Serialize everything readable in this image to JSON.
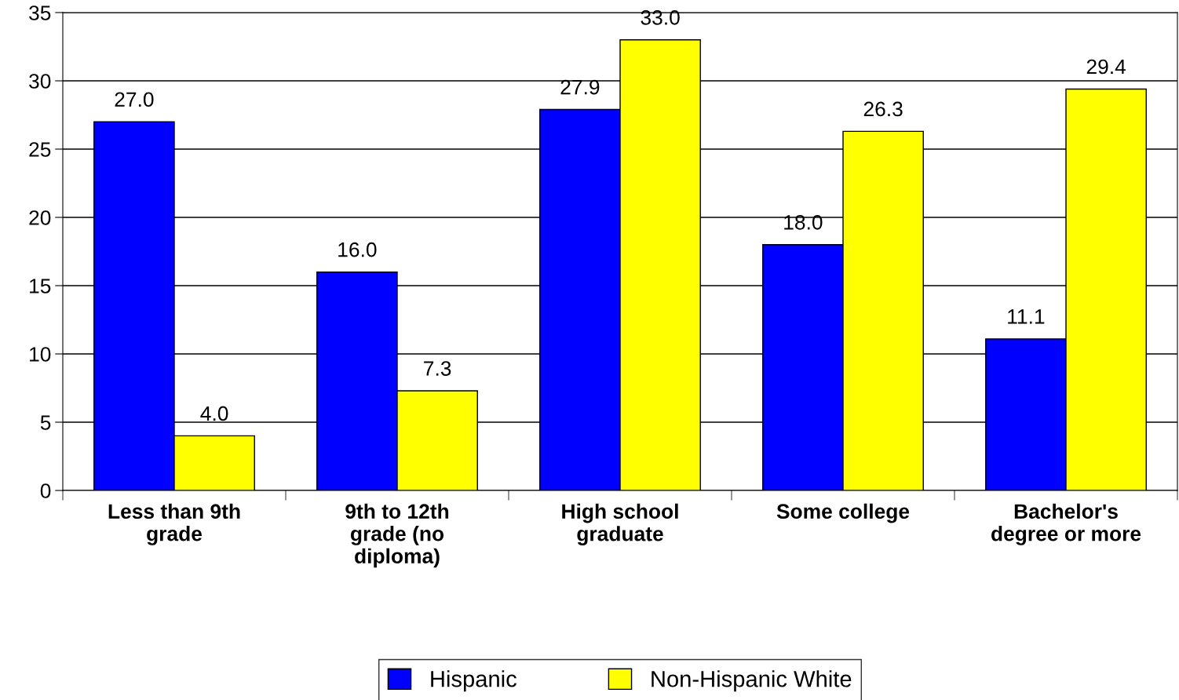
{
  "chart_data": {
    "type": "bar",
    "categories": [
      "Less than 9th\ngrade",
      "9th to 12th\ngrade (no\ndiploma)",
      "High school\ngraduate",
      "Some college",
      "Bachelor's\ndegree or more"
    ],
    "series": [
      {
        "name": "Hispanic",
        "color": "#0000ff",
        "values": [
          27.0,
          16.0,
          27.9,
          18.0,
          11.1
        ],
        "value_labels": [
          "27.0",
          "16.0",
          "27.9",
          "18.0",
          "11.1"
        ]
      },
      {
        "name": "Non-Hispanic White",
        "color": "#ffff00",
        "values": [
          4.0,
          7.3,
          33.0,
          26.3,
          29.4
        ],
        "value_labels": [
          "4.0",
          "7.3",
          "33.0",
          "26.3",
          "29.4"
        ]
      }
    ],
    "ylim": [
      0,
      35
    ],
    "yticks": [
      0,
      5,
      10,
      15,
      20,
      25,
      30,
      35
    ],
    "grid": "y",
    "legend": "bottom"
  }
}
